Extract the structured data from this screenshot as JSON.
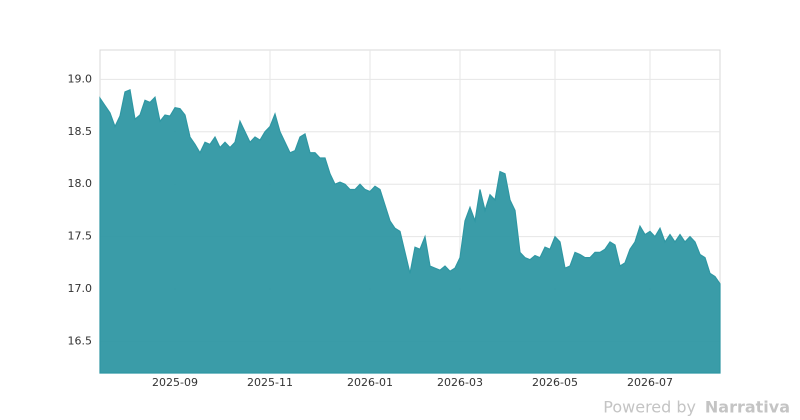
{
  "chart_data": {
    "type": "area",
    "categories": [
      null,
      null,
      null,
      null,
      null,
      null,
      null,
      null,
      null,
      null,
      null,
      null,
      null,
      null,
      null,
      "2025-09",
      null,
      null,
      null,
      null,
      null,
      null,
      null,
      null,
      null,
      null,
      null,
      null,
      null,
      null,
      null,
      null,
      null,
      null,
      "2025-11",
      null,
      null,
      null,
      null,
      null,
      null,
      null,
      null,
      null,
      null,
      null,
      null,
      null,
      null,
      null,
      null,
      null,
      null,
      null,
      "2026-01",
      null,
      null,
      null,
      null,
      null,
      null,
      null,
      null,
      null,
      null,
      null,
      null,
      null,
      null,
      null,
      null,
      null,
      "2026-03",
      null,
      null,
      null,
      null,
      null,
      null,
      null,
      null,
      null,
      null,
      null,
      null,
      null,
      null,
      null,
      null,
      null,
      null,
      "2026-05",
      null,
      null,
      null,
      null,
      null,
      null,
      null,
      null,
      null,
      null,
      null,
      null,
      null,
      null,
      null,
      null,
      null,
      null,
      "2026-07",
      null,
      null,
      null,
      null,
      null,
      null,
      null,
      null,
      null,
      null,
      null,
      null,
      null,
      null
    ],
    "series": [
      {
        "color": "#2f97a3",
        "values": [
          18.82,
          18.75,
          18.68,
          18.55,
          18.65,
          18.88,
          18.9,
          18.62,
          18.66,
          18.8,
          18.78,
          18.83,
          18.6,
          18.66,
          18.65,
          18.73,
          18.72,
          18.66,
          18.45,
          18.38,
          18.3,
          18.4,
          18.38,
          18.45,
          18.35,
          18.4,
          18.35,
          18.4,
          18.6,
          18.5,
          18.4,
          18.45,
          18.42,
          18.5,
          18.55,
          18.67,
          18.5,
          18.4,
          18.3,
          18.32,
          18.45,
          18.48,
          18.3,
          18.3,
          18.25,
          18.25,
          18.1,
          18.0,
          18.02,
          18.0,
          17.95,
          17.95,
          18.0,
          17.95,
          17.93,
          17.98,
          17.95,
          17.8,
          17.65,
          17.58,
          17.55,
          17.35,
          17.15,
          17.4,
          17.38,
          17.5,
          17.22,
          17.2,
          17.18,
          17.22,
          17.17,
          17.2,
          17.3,
          17.65,
          17.78,
          17.65,
          17.95,
          17.75,
          17.9,
          17.85,
          18.12,
          18.1,
          17.85,
          17.75,
          17.35,
          17.3,
          17.28,
          17.32,
          17.3,
          17.4,
          17.38,
          17.5,
          17.45,
          17.2,
          17.22,
          17.35,
          17.33,
          17.3,
          17.3,
          17.35,
          17.35,
          17.38,
          17.45,
          17.42,
          17.22,
          17.25,
          17.38,
          17.45,
          17.6,
          17.52,
          17.55,
          17.5,
          17.58,
          17.45,
          17.52,
          17.45,
          17.52,
          17.45,
          17.5,
          17.45,
          17.33,
          17.3,
          17.15,
          17.12,
          17.05
        ]
      }
    ],
    "ylim": [
      16.2,
      19.28
    ],
    "yticks": [
      16.5,
      {
        "value": 17,
        "label": "17.0"
      },
      17.5,
      {
        "value": 18,
        "label": "18.0"
      },
      18.5,
      {
        "value": 19,
        "label": "19.0"
      }
    ],
    "grid": true
  },
  "branding": {
    "prefix": "Powered by",
    "name": "Narrativa"
  }
}
